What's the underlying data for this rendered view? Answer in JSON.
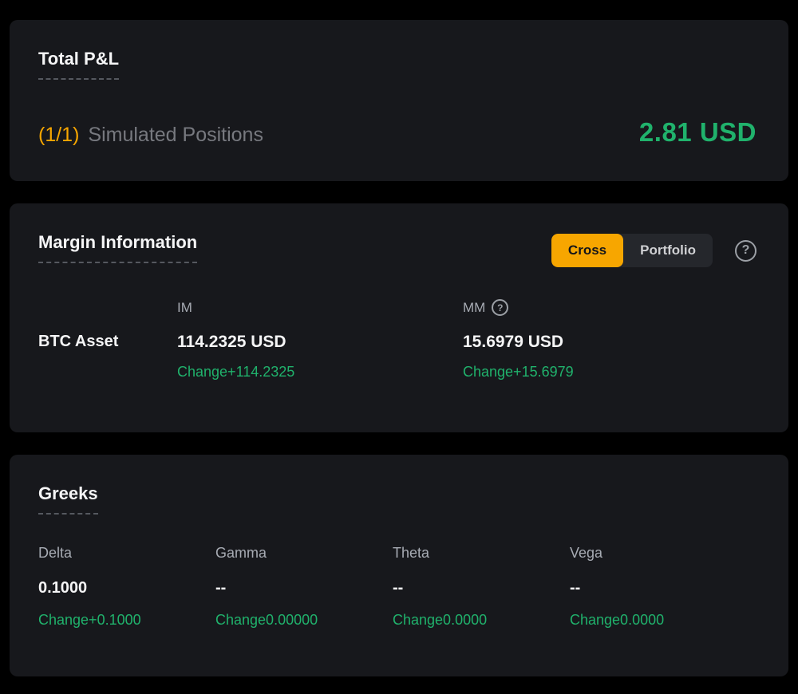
{
  "colors": {
    "page_bg": "#000000",
    "panel_bg": "#17181c",
    "text_primary": "#f5f5f6",
    "text_secondary": "#a7abb3",
    "text_muted": "#77797f",
    "accent_orange": "#f7a600",
    "positive_green": "#20b26c",
    "toggle_bg": "#25272c"
  },
  "icons": {
    "help_glyph": "?"
  },
  "pnl": {
    "title": "Total P&L",
    "count": "(1/1)",
    "label": "Simulated Positions",
    "value": "2.81 USD"
  },
  "margin": {
    "title": "Margin Information",
    "toggle": {
      "cross": "Cross",
      "portfolio": "Portfolio",
      "selected": "Cross"
    },
    "col_im": "IM",
    "col_mm": "MM",
    "asset": "BTC Asset",
    "im_value": "114.2325 USD",
    "im_change": "Change+114.2325",
    "mm_value": "15.6979 USD",
    "mm_change": "Change+15.6979"
  },
  "greeks": {
    "title": "Greeks",
    "items": [
      {
        "label": "Delta",
        "value": "0.1000",
        "change": "Change+0.1000"
      },
      {
        "label": "Gamma",
        "value": "--",
        "change": "Change0.00000"
      },
      {
        "label": "Theta",
        "value": "--",
        "change": "Change0.0000"
      },
      {
        "label": "Vega",
        "value": "--",
        "change": "Change0.0000"
      }
    ]
  }
}
